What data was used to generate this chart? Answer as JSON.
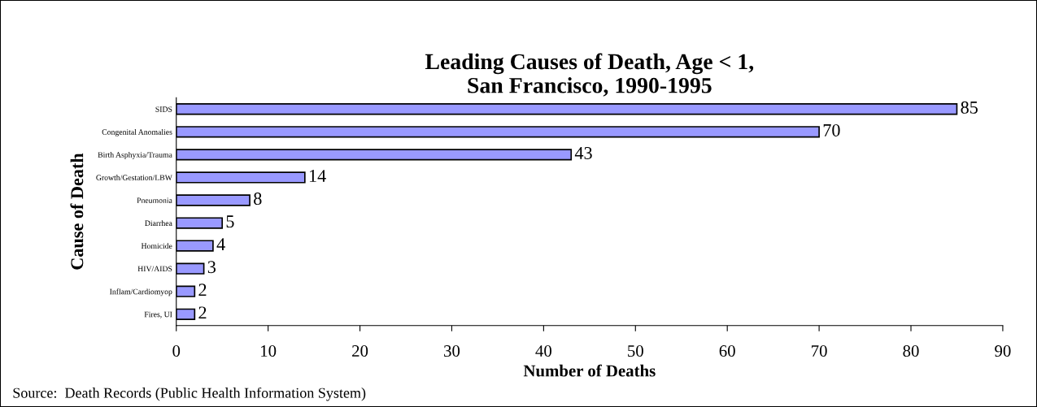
{
  "chart_data": {
    "type": "bar",
    "orientation": "horizontal",
    "title": "Leading Causes of Death, Age < 1,\nSan Francisco, 1990-1995",
    "xlabel": "Number of Deaths",
    "ylabel": "Cause of Death",
    "categories": [
      "SIDS",
      "Congenital Anomalies",
      "Birth Asphyxia/Trauma",
      "Growth/Gestation/LBW",
      "Pneumonia",
      "Diarrhea",
      "Homicide",
      "HIV/AIDS",
      "Inflam/Cardiomyop",
      "Fires, UI"
    ],
    "values": [
      85,
      70,
      43,
      14,
      8,
      5,
      4,
      3,
      2,
      2
    ],
    "color": "#9999ff",
    "xlim": [
      0,
      90
    ],
    "xticks": [
      0,
      10,
      20,
      30,
      40,
      50,
      60,
      70,
      80,
      90
    ],
    "data_labels": true,
    "grid": false,
    "annotations": [
      "Source:  Death Records (Public Health Information System)"
    ]
  }
}
